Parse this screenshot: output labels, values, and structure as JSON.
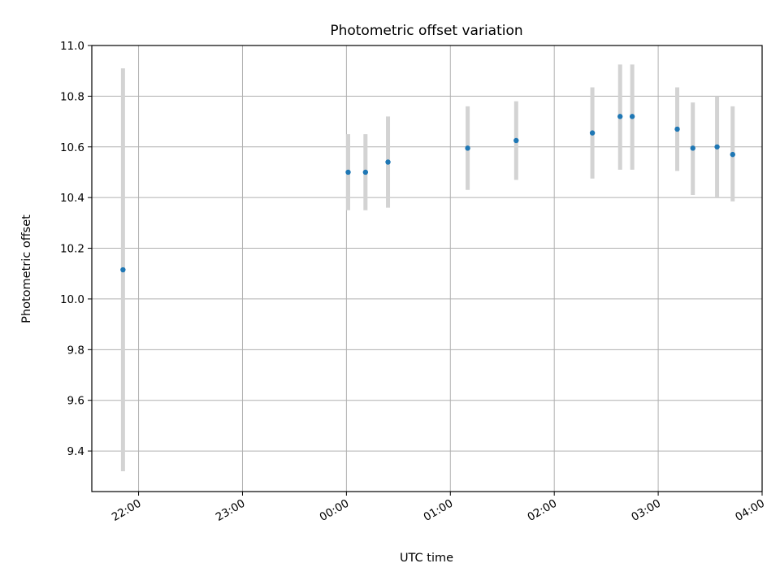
{
  "chart_data": {
    "type": "scatter",
    "title": "Photometric offset variation",
    "xlabel": "UTC time",
    "ylabel": "Photometric offset",
    "x_unit": "time of day (UTC), HH:MM; points after midnight are on the following day",
    "xlim": [
      "21:33",
      "04:00"
    ],
    "ylim": [
      9.24,
      11.0
    ],
    "grid": true,
    "x_ticks": [
      "22:00",
      "23:00",
      "00:00",
      "01:00",
      "02:00",
      "03:00",
      "04:00"
    ],
    "y_ticks": [
      "9.4",
      "9.6",
      "9.8",
      "10.0",
      "10.2",
      "10.4",
      "10.6",
      "10.8",
      "11.0"
    ],
    "colors": {
      "points": "#1f77b4",
      "errorbars": "#d3d3d3",
      "grid": "#b0b0b0"
    },
    "points": [
      {
        "x": "21:51",
        "y": 10.115,
        "ylow": 9.32,
        "yhigh": 10.91
      },
      {
        "x": "00:01",
        "y": 10.5,
        "ylow": 10.35,
        "yhigh": 10.65
      },
      {
        "x": "00:11",
        "y": 10.5,
        "ylow": 10.35,
        "yhigh": 10.65
      },
      {
        "x": "00:24",
        "y": 10.54,
        "ylow": 10.36,
        "yhigh": 10.72
      },
      {
        "x": "01:10",
        "y": 10.595,
        "ylow": 10.43,
        "yhigh": 10.76
      },
      {
        "x": "01:38",
        "y": 10.625,
        "ylow": 10.47,
        "yhigh": 10.78
      },
      {
        "x": "02:22",
        "y": 10.655,
        "ylow": 10.475,
        "yhigh": 10.835
      },
      {
        "x": "02:38",
        "y": 10.72,
        "ylow": 10.51,
        "yhigh": 10.925
      },
      {
        "x": "02:45",
        "y": 10.72,
        "ylow": 10.51,
        "yhigh": 10.925
      },
      {
        "x": "03:11",
        "y": 10.67,
        "ylow": 10.505,
        "yhigh": 10.835
      },
      {
        "x": "03:20",
        "y": 10.595,
        "ylow": 10.41,
        "yhigh": 10.775
      },
      {
        "x": "03:34",
        "y": 10.6,
        "ylow": 10.4,
        "yhigh": 10.8
      },
      {
        "x": "03:43",
        "y": 10.57,
        "ylow": 10.385,
        "yhigh": 10.76
      }
    ]
  }
}
